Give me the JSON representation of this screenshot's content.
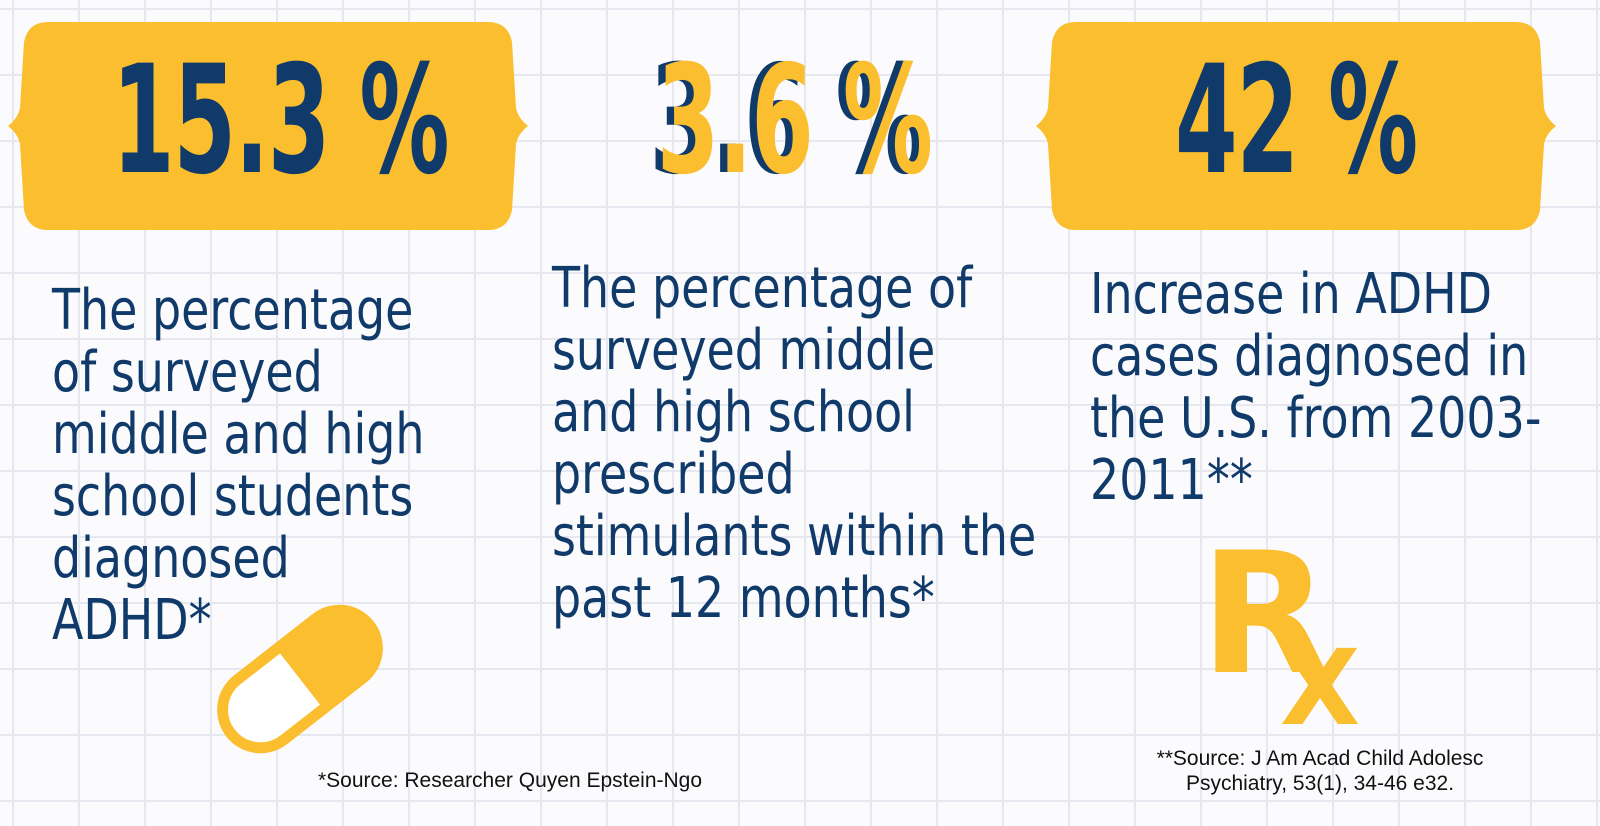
{
  "colors": {
    "yellow": "#fbbe2e",
    "navy": "#0f3a69",
    "grid": "#e6e7ef",
    "background": "#fbfbfd"
  },
  "stats": [
    {
      "value": "15.3 %",
      "description_lines": [
        "The percentage",
        "of surveyed",
        "middle and high",
        "school students",
        "diagnosed",
        "ADHD*"
      ]
    },
    {
      "value": "3.6 %",
      "description_lines": [
        "The percentage of",
        "surveyed middle",
        "and high school",
        "prescribed",
        "stimulants within the",
        "past 12 months*"
      ]
    },
    {
      "value": "42 %",
      "description_lines": [
        "Increase in ADHD",
        "cases diagnosed in",
        "the U.S. from 2003-",
        "2011**"
      ]
    }
  ],
  "icons": {
    "pill": "pill-capsule-icon",
    "rx": "rx-prescription-icon"
  },
  "rx_symbol": {
    "r": "R",
    "x": "X"
  },
  "sources": {
    "first": "*Source: Researcher Quyen Epstein-Ngo",
    "second_lines": [
      "**Source: J Am Acad Child Adolesc",
      "Psychiatry, 53(1), 34-46 e32."
    ]
  }
}
